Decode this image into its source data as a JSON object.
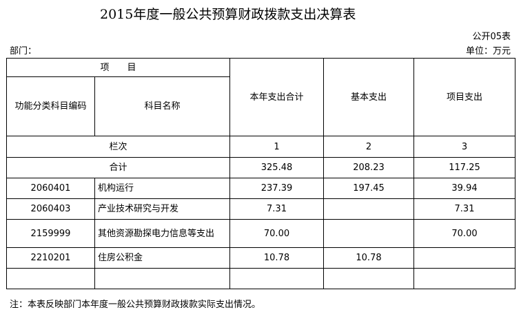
{
  "title": "2015年度一般公共预算财政拨款支出决算表",
  "form_no": "公开05表",
  "department_label": "部门：",
  "unit_label": "单位：万元",
  "header": {
    "item": "项　　目",
    "code": "功能分类科目编码",
    "name": "科目名称",
    "total": "本年支出合计",
    "basic": "基本支出",
    "project": "项目支出"
  },
  "column_index": {
    "label": "栏次",
    "c1": "1",
    "c2": "2",
    "c3": "3"
  },
  "sum_row": {
    "label": "合计",
    "total": "325.48",
    "basic": "208.23",
    "project": "117.25"
  },
  "rows": [
    {
      "code": "2060401",
      "name": "机构运行",
      "total": "237.39",
      "basic": "197.45",
      "project": "39.94"
    },
    {
      "code": "2060403",
      "name": "产业技术研究与开发",
      "total": "7.31",
      "basic": "",
      "project": "7.31"
    },
    {
      "code": "2159999",
      "name": "其他资源勘探电力信息等支出",
      "total": "70.00",
      "basic": "",
      "project": "70.00"
    },
    {
      "code": "2210201",
      "name": "住房公积金",
      "total": "10.78",
      "basic": "10.78",
      "project": ""
    }
  ],
  "note": "注：本表反映部门本年度一般公共预算财政拨款实际支出情况。"
}
